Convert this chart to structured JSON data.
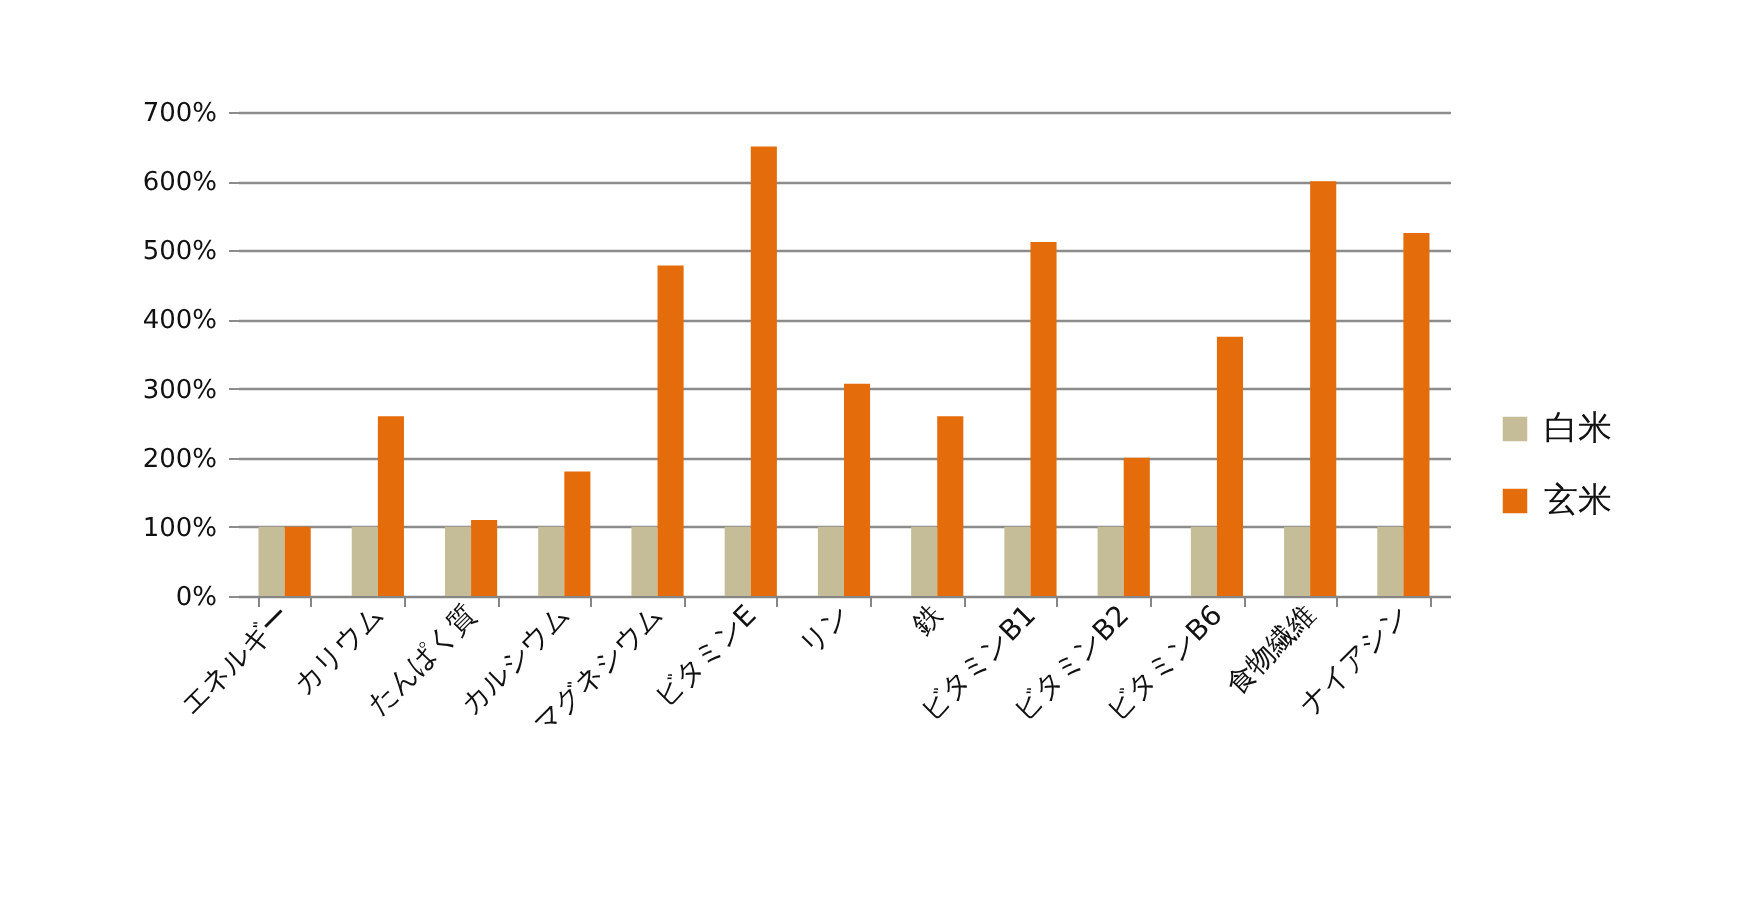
{
  "chart_data": {
    "type": "bar",
    "categories": [
      "エネルギー",
      "カリウム",
      "たんぱく質",
      "カルシウム",
      "マグネシウム",
      "ビタミンE",
      "リン",
      "鉄",
      "ビタミンB1",
      "ビタミンB2",
      "ビタミンB6",
      "食物繊維",
      "ナイアシン"
    ],
    "series": [
      {
        "name": "白米",
        "color": "#c4bd97",
        "values": [
          100,
          100,
          100,
          100,
          100,
          100,
          100,
          100,
          100,
          100,
          100,
          100,
          100
        ]
      },
      {
        "name": "玄米",
        "color": "#e46c0a",
        "values": [
          100,
          260,
          110,
          180,
          478,
          650,
          307,
          260,
          512,
          200,
          375,
          600,
          525
        ]
      }
    ],
    "ylim": [
      0,
      700
    ],
    "yticks": [
      {
        "value": 0,
        "label": "0%"
      },
      {
        "value": 100,
        "label": "100%"
      },
      {
        "value": 200,
        "label": "200%"
      },
      {
        "value": 300,
        "label": "300%"
      },
      {
        "value": 400,
        "label": "400%"
      },
      {
        "value": 500,
        "label": "500%"
      },
      {
        "value": 600,
        "label": "600%"
      },
      {
        "value": 700,
        "label": "700%"
      }
    ],
    "grid": "y",
    "legend": "right"
  }
}
